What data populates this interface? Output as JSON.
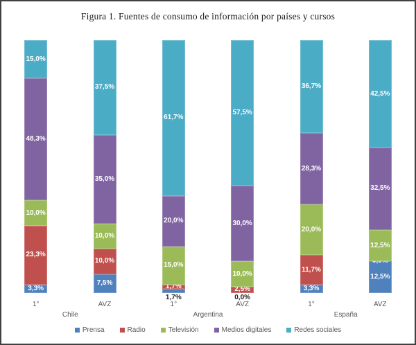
{
  "chart_data": {
    "type": "bar",
    "stacked": true,
    "percent_stack": true,
    "title": "Figura 1. Fuentes de consumo de información por países y cursos",
    "ylim": [
      0,
      100
    ],
    "grid": false,
    "legend_position": "bottom",
    "value_label_style": "comma-decimal, one decimal place, % suffix, white inside segments, dark below axis for tiny bottom segments",
    "series": [
      {
        "key": "prensa",
        "name": "Prensa",
        "color": "#4f81bd"
      },
      {
        "key": "radio",
        "name": "Radio",
        "color": "#c0504d"
      },
      {
        "key": "television",
        "name": "Televisión",
        "color": "#9bbb59"
      },
      {
        "key": "medios-digitales",
        "name": "Medios digitales",
        "color": "#8064a2"
      },
      {
        "key": "redes-sociales",
        "name": "Redes sociales",
        "color": "#4bacc6"
      }
    ],
    "groups": [
      {
        "country": "Chile",
        "bars": [
          {
            "label": "1°",
            "values": [
              3.3,
              23.3,
              10.0,
              48.3,
              15.0
            ],
            "value_labels": [
              "3,3%",
              "23,3%",
              "10,0%",
              "48,3%",
              "15,0%"
            ]
          },
          {
            "label": "AVZ",
            "values": [
              7.5,
              10.0,
              10.0,
              35.0,
              37.5
            ],
            "value_labels": [
              "7,5%",
              "10,0%",
              "10,0%",
              "35,0%",
              "37,5%"
            ]
          }
        ]
      },
      {
        "country": "Argentina",
        "bars": [
          {
            "label": "1°",
            "values": [
              1.7,
              1.7,
              15.0,
              20.0,
              61.7
            ],
            "value_labels": [
              "1,7%",
              "1,7%",
              "15,0%",
              "20,0%",
              "61,7%"
            ]
          },
          {
            "label": "AVZ",
            "values": [
              0.0,
              2.5,
              10.0,
              30.0,
              57.5
            ],
            "value_labels": [
              "0,0%",
              "2,5%",
              "10,0%",
              "30,0%",
              "57,5%"
            ]
          }
        ]
      },
      {
        "country": "España",
        "bars": [
          {
            "label": "1°",
            "values": [
              3.3,
              11.7,
              20.0,
              28.3,
              36.7
            ],
            "value_labels": [
              "3,3%",
              "11,7%",
              "20,0%",
              "28,3%",
              "36,7%"
            ]
          },
          {
            "label": "AVZ",
            "values": [
              12.5,
              0.0,
              12.5,
              32.5,
              42.5
            ],
            "value_labels": [
              "12,5%",
              "0,0%",
              "12,5%",
              "32,5%",
              "42,5%"
            ]
          }
        ]
      }
    ]
  }
}
